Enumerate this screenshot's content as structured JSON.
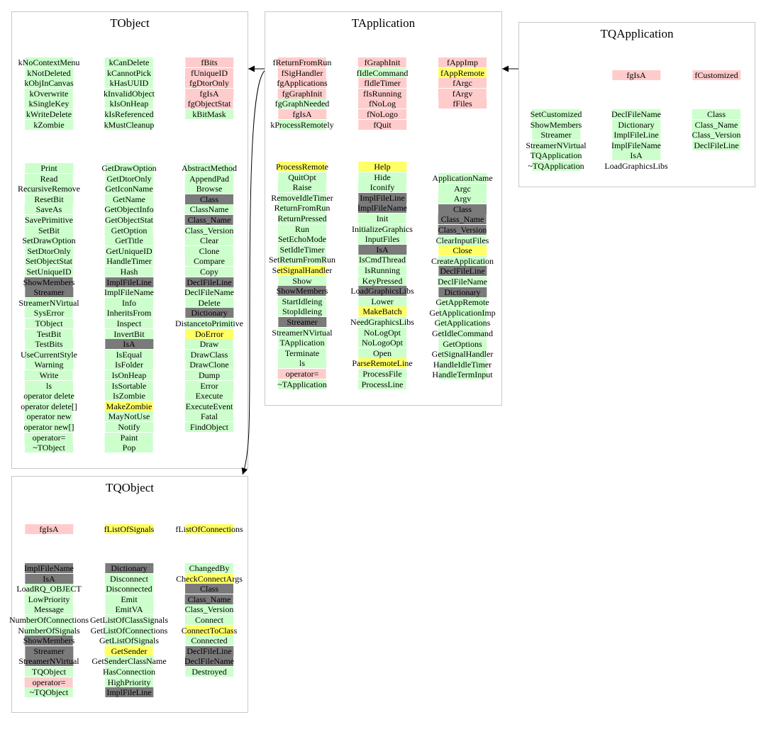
{
  "colors": {
    "green": "#ccffcc",
    "pink": "#ffcccc",
    "dark": "#7a7a7a",
    "yellow": "#ffff66",
    "border": "#c8c8c8"
  },
  "classes": [
    {
      "name": "TObject",
      "members": [
        [
          [
            "kNoContextMenu",
            "g"
          ],
          [
            "kNotDeleted",
            "g"
          ],
          [
            "kObjInCanvas",
            "g"
          ],
          [
            "kOverwrite",
            "g"
          ],
          [
            "kSingleKey",
            "g"
          ],
          [
            "kWriteDelete",
            "g"
          ],
          [
            "kZombie",
            "g"
          ]
        ],
        [
          [
            "kCanDelete",
            "g"
          ],
          [
            "kCannotPick",
            "g"
          ],
          [
            "kHasUUID",
            "g"
          ],
          [
            "kInvalidObject",
            "g"
          ],
          [
            "kIsOnHeap",
            "g"
          ],
          [
            "kIsReferenced",
            "g"
          ],
          [
            "kMustCleanup",
            "g"
          ]
        ],
        [
          [
            "fBits",
            "p"
          ],
          [
            "fUniqueID",
            "p"
          ],
          [
            "fgDtorOnly",
            "p"
          ],
          [
            "fgIsA",
            "p"
          ],
          [
            "fgObjectStat",
            "p"
          ],
          [
            "kBitMask",
            "g"
          ]
        ]
      ],
      "methods": [
        [
          [
            "Print",
            "g"
          ],
          [
            "Read",
            "g"
          ],
          [
            "RecursiveRemove",
            "g"
          ],
          [
            "ResetBit",
            "g"
          ],
          [
            "SaveAs",
            "g"
          ],
          [
            "SavePrimitive",
            "g"
          ],
          [
            "SetBit",
            "g"
          ],
          [
            "SetDrawOption",
            "g"
          ],
          [
            "SetDtorOnly",
            "g"
          ],
          [
            "SetObjectStat",
            "g"
          ],
          [
            "SetUniqueID",
            "g"
          ],
          [
            "ShowMembers",
            "d"
          ],
          [
            "Streamer",
            "d"
          ],
          [
            "StreamerNVirtual",
            "g"
          ],
          [
            "SysError",
            "g"
          ],
          [
            "TObject",
            "g"
          ],
          [
            "TestBit",
            "g"
          ],
          [
            "TestBits",
            "g"
          ],
          [
            "UseCurrentStyle",
            "g"
          ],
          [
            "Warning",
            "g"
          ],
          [
            "Write",
            "g"
          ],
          [
            "ls",
            "g"
          ],
          [
            "operator delete",
            "g"
          ],
          [
            "operator delete[]",
            "g"
          ],
          [
            "operator new",
            "g"
          ],
          [
            "operator new[]",
            "g"
          ],
          [
            "operator=",
            "g"
          ],
          [
            "~TObject",
            "g"
          ]
        ],
        [
          [
            "GetDrawOption",
            "g"
          ],
          [
            "GetDtorOnly",
            "g"
          ],
          [
            "GetIconName",
            "g"
          ],
          [
            "GetName",
            "g"
          ],
          [
            "GetObjectInfo",
            "g"
          ],
          [
            "GetObjectStat",
            "g"
          ],
          [
            "GetOption",
            "g"
          ],
          [
            "GetTitle",
            "g"
          ],
          [
            "GetUniqueID",
            "g"
          ],
          [
            "HandleTimer",
            "g"
          ],
          [
            "Hash",
            "g"
          ],
          [
            "ImplFileLine",
            "d"
          ],
          [
            "ImplFileName",
            "g"
          ],
          [
            "Info",
            "g"
          ],
          [
            "InheritsFrom",
            "g"
          ],
          [
            "Inspect",
            "g"
          ],
          [
            "InvertBit",
            "g"
          ],
          [
            "IsA",
            "d"
          ],
          [
            "IsEqual",
            "g"
          ],
          [
            "IsFolder",
            "g"
          ],
          [
            "IsOnHeap",
            "g"
          ],
          [
            "IsSortable",
            "g"
          ],
          [
            "IsZombie",
            "g"
          ],
          [
            "MakeZombie",
            "y"
          ],
          [
            "MayNotUse",
            "g"
          ],
          [
            "Notify",
            "g"
          ],
          [
            "Paint",
            "g"
          ],
          [
            "Pop",
            "g"
          ]
        ],
        [
          [
            "AbstractMethod",
            "g"
          ],
          [
            "AppendPad",
            "g"
          ],
          [
            "Browse",
            "g"
          ],
          [
            "Class",
            "d"
          ],
          [
            "ClassName",
            "g"
          ],
          [
            "Class_Name",
            "d"
          ],
          [
            "Class_Version",
            "g"
          ],
          [
            "Clear",
            "g"
          ],
          [
            "Clone",
            "g"
          ],
          [
            "Compare",
            "g"
          ],
          [
            "Copy",
            "g"
          ],
          [
            "DeclFileLine",
            "d"
          ],
          [
            "DeclFileName",
            "g"
          ],
          [
            "Delete",
            "g"
          ],
          [
            "Dictionary",
            "d"
          ],
          [
            "DistancetoPrimitive",
            "g"
          ],
          [
            "DoError",
            "y"
          ],
          [
            "Draw",
            "g"
          ],
          [
            "DrawClass",
            "g"
          ],
          [
            "DrawClone",
            "g"
          ],
          [
            "Dump",
            "g"
          ],
          [
            "Error",
            "g"
          ],
          [
            "Execute",
            "g"
          ],
          [
            "ExecuteEvent",
            "g"
          ],
          [
            "Fatal",
            "g"
          ],
          [
            "FindObject",
            "g"
          ]
        ]
      ]
    },
    {
      "name": "TApplication",
      "members": [
        [
          [
            "fReturnFromRun",
            "p"
          ],
          [
            "fSigHandler",
            "p"
          ],
          [
            "fgApplications",
            "p"
          ],
          [
            "fgGraphInit",
            "p"
          ],
          [
            "fgGraphNeeded",
            "g"
          ],
          [
            "fgIsA",
            "p"
          ],
          [
            "kProcessRemotely",
            "g"
          ]
        ],
        [
          [
            "fGraphInit",
            "p"
          ],
          [
            "fIdleCommand",
            "g"
          ],
          [
            "fIdleTimer",
            "p"
          ],
          [
            "fIsRunning",
            "p"
          ],
          [
            "fNoLog",
            "p"
          ],
          [
            "fNoLogo",
            "p"
          ],
          [
            "fQuit",
            "p"
          ]
        ],
        [
          [
            "fAppImp",
            "p"
          ],
          [
            "fAppRemote",
            "y"
          ],
          [
            "fArgc",
            "p"
          ],
          [
            "fArgv",
            "p"
          ],
          [
            "fFiles",
            "p"
          ]
        ]
      ],
      "methods": [
        [
          [
            "ProcessRemote",
            "y"
          ],
          [
            "QuitOpt",
            "g"
          ],
          [
            "Raise",
            "g"
          ],
          [
            "RemoveIdleTimer",
            "g"
          ],
          [
            "ReturnFromRun",
            "g"
          ],
          [
            "ReturnPressed",
            "g"
          ],
          [
            "Run",
            "g"
          ],
          [
            "SetEchoMode",
            "g"
          ],
          [
            "SetIdleTimer",
            "g"
          ],
          [
            "SetReturnFromRun",
            "g"
          ],
          [
            "SetSignalHandler",
            "y"
          ],
          [
            "Show",
            "g"
          ],
          [
            "ShowMembers",
            "d"
          ],
          [
            "StartIdleing",
            "g"
          ],
          [
            "StopIdleing",
            "g"
          ],
          [
            "Streamer",
            "d"
          ],
          [
            "StreamerNVirtual",
            "g"
          ],
          [
            "TApplication",
            "g"
          ],
          [
            "Terminate",
            "g"
          ],
          [
            "ls",
            "g"
          ],
          [
            "operator=",
            "p"
          ],
          [
            "~TApplication",
            "g"
          ]
        ],
        [
          [
            "Help",
            "y"
          ],
          [
            "Hide",
            "g"
          ],
          [
            "Iconify",
            "g"
          ],
          [
            "ImplFileLine",
            "d"
          ],
          [
            "ImplFileName",
            "d"
          ],
          [
            "Init",
            "g"
          ],
          [
            "InitializeGraphics",
            "g"
          ],
          [
            "InputFiles",
            "g"
          ],
          [
            "IsA",
            "d"
          ],
          [
            "IsCmdThread",
            "g"
          ],
          [
            "IsRunning",
            "g"
          ],
          [
            "KeyPressed",
            "g"
          ],
          [
            "LoadGraphicsLibs",
            "d"
          ],
          [
            "Lower",
            "g"
          ],
          [
            "MakeBatch",
            "y"
          ],
          [
            "NeedGraphicsLibs",
            "g"
          ],
          [
            "NoLogOpt",
            "g"
          ],
          [
            "NoLogoOpt",
            "g"
          ],
          [
            "Open",
            "g"
          ],
          [
            "ParseRemoteLine",
            "y"
          ],
          [
            "ProcessFile",
            "g"
          ],
          [
            "ProcessLine",
            "g"
          ]
        ],
        [
          [
            "ApplicationName",
            "g"
          ],
          [
            "Argc",
            "g"
          ],
          [
            "Argv",
            "g"
          ],
          [
            "Class",
            "d"
          ],
          [
            "Class_Name",
            "d"
          ],
          [
            "Class_Version",
            "d"
          ],
          [
            "ClearInputFiles",
            "g"
          ],
          [
            "Close",
            "y"
          ],
          [
            "CreateApplication",
            "g"
          ],
          [
            "DeclFileLine",
            "d"
          ],
          [
            "DeclFileName",
            "g"
          ],
          [
            "Dictionary",
            "d"
          ],
          [
            "GetAppRemote",
            "g"
          ],
          [
            "GetApplicationImp",
            "g"
          ],
          [
            "GetApplications",
            "g"
          ],
          [
            "GetIdleCommand",
            "g"
          ],
          [
            "GetOptions",
            "g"
          ],
          [
            "GetSignalHandler",
            "g"
          ],
          [
            "HandleIdleTimer",
            "g"
          ],
          [
            "HandleTermInput",
            "g"
          ]
        ]
      ]
    },
    {
      "name": "TQApplication",
      "members": [
        [],
        [
          [
            "fgIsA",
            "p"
          ]
        ],
        [
          [
            "fCustomized",
            "p"
          ]
        ]
      ],
      "methods": [
        [
          [
            "SetCustomized",
            "g"
          ],
          [
            "ShowMembers",
            "g"
          ],
          [
            "Streamer",
            "g"
          ],
          [
            "StreamerNVirtual",
            "g"
          ],
          [
            "TQApplication",
            "g"
          ],
          [
            "~TQApplication",
            "g"
          ]
        ],
        [
          [
            "DeclFileName",
            "g"
          ],
          [
            "Dictionary",
            "g"
          ],
          [
            "ImplFileLine",
            "g"
          ],
          [
            "ImplFileName",
            "g"
          ],
          [
            "IsA",
            "g"
          ],
          [
            "LoadGraphicsLibs",
            "n"
          ]
        ],
        [
          [
            "Class",
            "g"
          ],
          [
            "Class_Name",
            "g"
          ],
          [
            "Class_Version",
            "g"
          ],
          [
            "DeclFileLine",
            "g"
          ]
        ]
      ]
    },
    {
      "name": "TQObject",
      "members": [
        [
          [
            "fgIsA",
            "p"
          ]
        ],
        [
          [
            "fListOfSignals",
            "y"
          ]
        ],
        [
          [
            "fListOfConnections",
            "y"
          ]
        ]
      ],
      "methods": [
        [
          [
            "ImplFileName",
            "d"
          ],
          [
            "IsA",
            "d"
          ],
          [
            "LoadRQ_OBJECT",
            "g"
          ],
          [
            "LowPriority",
            "g"
          ],
          [
            "Message",
            "g"
          ],
          [
            "NumberOfConnections",
            "g"
          ],
          [
            "NumberOfSignals",
            "g"
          ],
          [
            "ShowMembers",
            "d"
          ],
          [
            "Streamer",
            "d"
          ],
          [
            "StreamerNVirtual",
            "d"
          ],
          [
            "TQObject",
            "g"
          ],
          [
            "operator=",
            "p"
          ],
          [
            "~TQObject",
            "g"
          ]
        ],
        [
          [
            "Dictionary",
            "d"
          ],
          [
            "Disconnect",
            "g"
          ],
          [
            "Disconnected",
            "g"
          ],
          [
            "Emit",
            "g"
          ],
          [
            "EmitVA",
            "g"
          ],
          [
            "GetListOfClassSignals",
            "g"
          ],
          [
            "GetListOfConnections",
            "g"
          ],
          [
            "GetListOfSignals",
            "g"
          ],
          [
            "GetSender",
            "y"
          ],
          [
            "GetSenderClassName",
            "g"
          ],
          [
            "HasConnection",
            "g"
          ],
          [
            "HighPriority",
            "g"
          ],
          [
            "ImplFileLine",
            "d"
          ]
        ],
        [
          [
            "ChangedBy",
            "g"
          ],
          [
            "CheckConnectArgs",
            "y"
          ],
          [
            "Class",
            "d"
          ],
          [
            "Class_Name",
            "d"
          ],
          [
            "Class_Version",
            "g"
          ],
          [
            "Connect",
            "g"
          ],
          [
            "ConnectToClass",
            "y"
          ],
          [
            "Connected",
            "g"
          ],
          [
            "DeclFileLine",
            "d"
          ],
          [
            "DeclFileName",
            "d"
          ],
          [
            "Destroyed",
            "g"
          ]
        ]
      ]
    }
  ]
}
